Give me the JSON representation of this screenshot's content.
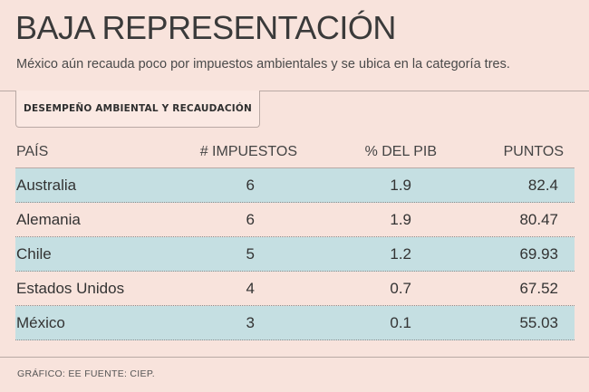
{
  "title": "BAJA REPRESENTACIÓN",
  "subtitle": "México aún recauda poco por impuestos ambientales y se ubica en la categoría tres.",
  "tab_label": "DESEMPEÑO AMBIENTAL Y RECAUDACIÓN",
  "footer": "GRÁFICO: EE  FUENTE: CIEP.",
  "colors": {
    "background": "#f8e3dc",
    "row_shade": "#c5dfe2",
    "text": "#3a3a3a"
  },
  "chart_data": {
    "type": "table",
    "columns": [
      "PAÍS",
      "# IMPUESTOS",
      "% DEL PIB",
      "PUNTOS"
    ],
    "rows": [
      {
        "pais": "Australia",
        "impuestos": "6",
        "pib": "1.9",
        "puntos": "82.4"
      },
      {
        "pais": "Alemania",
        "impuestos": "6",
        "pib": "1.9",
        "puntos": "80.47"
      },
      {
        "pais": "Chile",
        "impuestos": "5",
        "pib": "1.2",
        "puntos": "69.93"
      },
      {
        "pais": "Estados Unidos",
        "impuestos": "4",
        "pib": "0.7",
        "puntos": "67.52"
      },
      {
        "pais": "México",
        "impuestos": "3",
        "pib": "0.1",
        "puntos": "55.03"
      }
    ]
  }
}
